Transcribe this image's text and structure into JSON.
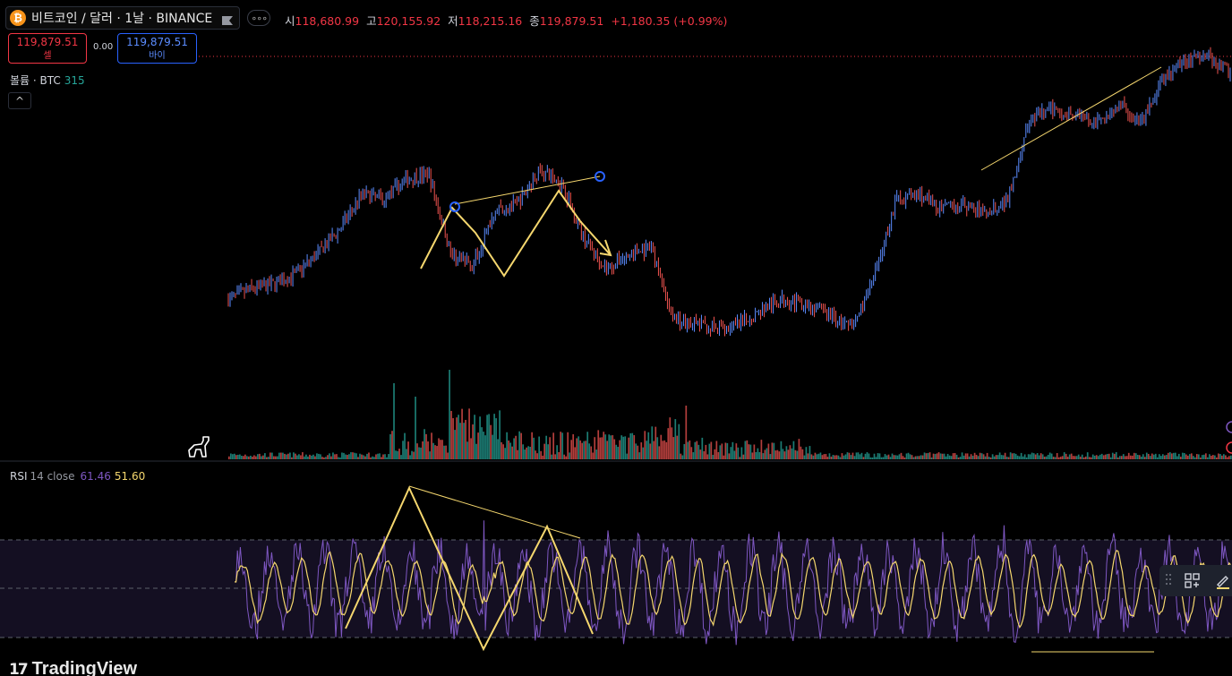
{
  "header": {
    "coin_symbol": "₿",
    "title": "비트코인 / 달러 · 1날 · BINANCE",
    "more": "∘∘∘"
  },
  "ohlc": {
    "open_label": "시",
    "open": "118,680.99",
    "high_label": "고",
    "high": "120,155.92",
    "low_label": "저",
    "low": "118,215.16",
    "close_label": "종",
    "close": "119,879.51",
    "change": "+1,180.35 (+0.99%)"
  },
  "trade": {
    "sell_price": "119,879.51",
    "sell_label": "셀",
    "spread": "0.00",
    "buy_price": "119,879.51",
    "buy_label": "바이"
  },
  "volume_legend": {
    "name": "볼륨 · BTC",
    "value": "315"
  },
  "collapse": "^",
  "rsi_legend": {
    "name": "RSI",
    "params": "14 close",
    "rsi_value": "61.46",
    "ma_value": "51.60"
  },
  "brand": {
    "mark": "17",
    "name": "TradingView"
  },
  "colors": {
    "up": "#26a69a",
    "down": "#ef5350",
    "price_line": "#5b8cff",
    "drawing": "#f5d76e",
    "rsi": "#7e57c2",
    "rsi_ma": "#f5d76e",
    "accent_red": "#f23645",
    "accent_blue": "#2962ff"
  },
  "icons": {
    "flag": "flag-icon",
    "dino": "dinosaur-icon",
    "grip": "grip-icon",
    "object-tree": "object-tree-icon",
    "pencil": "pencil-icon"
  },
  "chart_data": [
    {
      "type": "line",
      "series": [
        {
          "values": [
            110,
            112,
            113,
            115,
            119,
            124,
            131,
            130,
            134,
            135,
            119,
            117,
            128,
            129,
            136,
            133,
            122,
            116,
            119,
            120,
            106,
            105,
            104,
            105,
            108,
            110,
            109,
            107,
            104,
            114,
            130,
            131,
            128,
            129,
            127,
            130,
            146,
            148,
            147,
            145,
            149,
            145,
            154,
            158,
            159,
            155
          ]
        }
      ]
    },
    {
      "type": "bar",
      "series": [
        {
          "name": "볼륨 · BTC",
          "values": [
            315
          ]
        }
      ]
    },
    {
      "type": "line",
      "series": [
        {
          "name": "RSI",
          "values": [
            61.46
          ]
        },
        {
          "values": [
            51.6
          ]
        }
      ]
    }
  ]
}
